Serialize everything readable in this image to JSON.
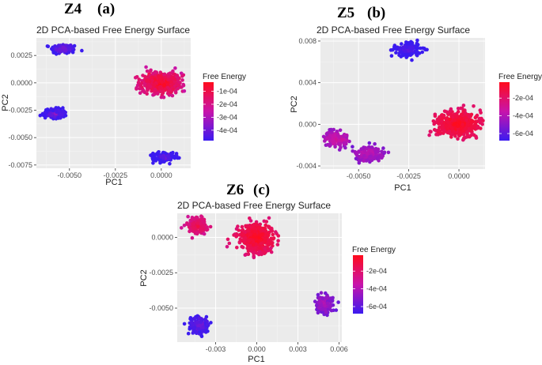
{
  "chart_data": [
    {
      "id": "a",
      "type": "scatter",
      "panel_label": "Z4",
      "panel_sublabel": "(a)",
      "title": "2D PCA-based Free Energy Surface",
      "xlabel": "PC1",
      "ylabel": "PC2",
      "xlim": [
        -0.0068,
        0.0016
      ],
      "ylim": [
        -0.0078,
        0.0041
      ],
      "xticks": [
        -0.005,
        -0.0025,
        0.0
      ],
      "xtick_labels": [
        "-0.0050",
        "-0.0025",
        "0.0000"
      ],
      "yticks": [
        -0.0075,
        -0.005,
        -0.0025,
        0.0,
        0.0025
      ],
      "ytick_labels": [
        "-0.0075",
        "-0.0050",
        "-0.0025",
        "0.0000",
        "0.0025"
      ],
      "grid": true,
      "legend": {
        "title": "Free Energy",
        "range": [
          -0.00048,
          -3e-05
        ],
        "ticks": [
          -0.0001,
          -0.0002,
          -0.0003,
          -0.0004
        ],
        "tick_labels": [
          "-1e-04",
          "-2e-04",
          "-3e-04",
          "-4e-04"
        ],
        "low_color": "#3b1bf0",
        "high_color": "#ff0c1c"
      },
      "clusters": [
        {
          "cx": -0.0053,
          "cy": 0.0031,
          "sx": 0.00035,
          "sy": 0.00022,
          "n": 130,
          "energy": -0.00036
        },
        {
          "cx": -0.0058,
          "cy": -0.0028,
          "sx": 0.00032,
          "sy": 0.00022,
          "n": 130,
          "energy": -0.00038
        },
        {
          "cx": 0.0,
          "cy": 0.0,
          "sx": 0.00055,
          "sy": 0.00048,
          "n": 520,
          "energy": -4e-05
        },
        {
          "cx": 0.0002,
          "cy": -0.0068,
          "sx": 0.00032,
          "sy": 0.00022,
          "n": 150,
          "energy": -0.0004
        }
      ]
    },
    {
      "id": "b",
      "type": "scatter",
      "panel_label": "Z5",
      "panel_sublabel": "(b)",
      "title": "2D PCA-based Free Energy Surface",
      "xlabel": "PC1",
      "ylabel": "PC2",
      "xlim": [
        -0.0069,
        0.0013
      ],
      "ylim": [
        -0.0043,
        0.0083
      ],
      "xticks": [
        -0.005,
        -0.0025,
        0.0
      ],
      "xtick_labels": [
        "-0.0050",
        "-0.0025",
        "0.0000"
      ],
      "yticks": [
        -0.004,
        0.0,
        0.004,
        0.008
      ],
      "ytick_labels": [
        "-0.004",
        "0.000",
        "0.004",
        "0.008"
      ],
      "grid": true,
      "legend": {
        "title": "Free Energy",
        "range": [
          -0.00068,
          -2e-05
        ],
        "ticks": [
          -0.0002,
          -0.0004,
          -0.0006
        ],
        "tick_labels": [
          "-2e-04",
          "-4e-04",
          "-6e-04"
        ],
        "low_color": "#3b1bf0",
        "high_color": "#ff0c1c"
      },
      "clusters": [
        {
          "cx": -0.0026,
          "cy": 0.0072,
          "sx": 0.00035,
          "sy": 0.00035,
          "n": 130,
          "energy": -0.0006
        },
        {
          "cx": -0.0061,
          "cy": -0.0014,
          "sx": 0.0003,
          "sy": 0.00035,
          "n": 130,
          "energy": -0.0003
        },
        {
          "cx": -0.0045,
          "cy": -0.0028,
          "sx": 0.0004,
          "sy": 0.00035,
          "n": 150,
          "energy": -0.00035
        },
        {
          "cx": 0.0,
          "cy": 0.0,
          "sx": 0.00055,
          "sy": 0.0006,
          "n": 520,
          "energy": -3e-05
        }
      ]
    },
    {
      "id": "c",
      "type": "scatter",
      "panel_label": "Z6",
      "panel_sublabel": "(c)",
      "title": "2D PCA-based Free Energy Surface",
      "xlabel": "PC1",
      "ylabel": "PC2",
      "xlim": [
        -0.0058,
        0.0062
      ],
      "ylim": [
        -0.0074,
        0.0017
      ],
      "xticks": [
        -0.003,
        0.0,
        0.003,
        0.006
      ],
      "xtick_labels": [
        "-0.003",
        "0.000",
        "0.003",
        "0.006"
      ],
      "yticks": [
        -0.005,
        -0.0025,
        0.0
      ],
      "ytick_labels": [
        "-0.0050",
        "-0.0025",
        "0.0000"
      ],
      "grid": true,
      "legend": {
        "title": "Free Energy",
        "range": [
          -0.00068,
          -2e-05
        ],
        "ticks": [
          -0.0002,
          -0.0004,
          -0.0006
        ],
        "tick_labels": [
          "-2e-04",
          "-4e-04",
          "-6e-04"
        ],
        "low_color": "#3b1bf0",
        "high_color": "#ff0c1c"
      },
      "clusters": [
        {
          "cx": -0.0043,
          "cy": 0.0008,
          "sx": 0.00035,
          "sy": 0.00028,
          "n": 130,
          "energy": -0.00012
        },
        {
          "cx": 0.0,
          "cy": 0.0,
          "sx": 0.0006,
          "sy": 0.00045,
          "n": 520,
          "energy": -3e-05
        },
        {
          "cx": 0.0049,
          "cy": -0.0047,
          "sx": 0.00032,
          "sy": 0.00032,
          "n": 130,
          "energy": -0.0004
        },
        {
          "cx": -0.0042,
          "cy": -0.0062,
          "sx": 0.00035,
          "sy": 0.00035,
          "n": 150,
          "energy": -0.00055
        }
      ]
    }
  ]
}
